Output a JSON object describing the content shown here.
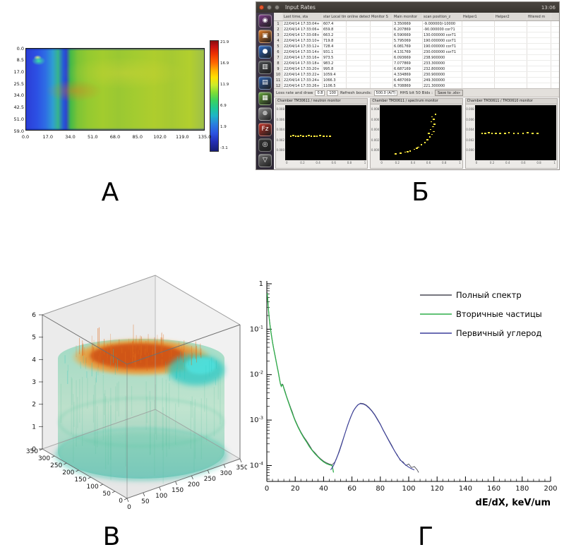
{
  "labels": {
    "panel_a": "А",
    "panel_b": "Б",
    "panel_v": "В",
    "panel_g": "Г"
  },
  "panel_b": {
    "window_title": "Input Rates",
    "clock": "13:06",
    "launcher": [
      {
        "name": "dash-home",
        "bg": "#7b3b86",
        "glyph": "◉"
      },
      {
        "name": "files",
        "bg": "#e07b26",
        "glyph": "▣"
      },
      {
        "name": "firefox",
        "bg": "#2e6bc4",
        "glyph": "●"
      },
      {
        "name": "system-monitor",
        "bg": "#4a4d50",
        "glyph": "▥"
      },
      {
        "name": "libreoffice-writer",
        "bg": "#2d5fa9",
        "glyph": "▤"
      },
      {
        "name": "libreoffice-calc",
        "bg": "#68a63e",
        "glyph": "▦"
      },
      {
        "name": "settings",
        "bg": "#8d8d8d",
        "glyph": "⊕"
      },
      {
        "name": "fz-analyzer",
        "bg": "#c23227",
        "glyph": "Fz"
      },
      {
        "name": "screenshot-tool",
        "bg": "#343434",
        "glyph": "◎"
      },
      {
        "name": "trash",
        "bg": "#6f6f6f",
        "glyph": "▽"
      }
    ],
    "table": {
      "columns": [
        "",
        "Last time, sta",
        "star Local time, ms",
        "online detector da",
        "Monitor S",
        "Main monitor",
        "scan position_z",
        "Helper1",
        "Helper2",
        "filtered m"
      ],
      "rows": [
        [
          "1",
          "22/04/14 17:33:04+",
          "607.4",
          "",
          "",
          "3.350669",
          "-9.000000/-10000",
          "",
          "",
          ""
        ],
        [
          "2",
          "22/04/14 17:33:06+",
          "659.8",
          "",
          "",
          "6.207869",
          "-90.000000 cor71",
          "",
          "",
          ""
        ],
        [
          "3",
          "22/04/14 17:33:08+",
          "663.2",
          "",
          "",
          "6.590669",
          "130.000000 cor71",
          "",
          "",
          ""
        ],
        [
          "4",
          "22/04/14 17:33:10+",
          "719.8",
          "",
          "",
          "5.795069",
          "190.000000 cor71",
          "",
          "",
          ""
        ],
        [
          "5",
          "22/04/14 17:33:12+",
          "728.4",
          "",
          "",
          "6.081769",
          "190.000000 cor71",
          "",
          "",
          ""
        ],
        [
          "6",
          "22/04/14 17:33:14+",
          "931.1",
          "",
          "",
          "4.131769",
          "230.000000 cor71",
          "",
          "",
          ""
        ],
        [
          "7",
          "22/04/14 17:33:16+",
          "973.5",
          "",
          "",
          "6.093669",
          "238.900000",
          "",
          "",
          ""
        ],
        [
          "8",
          "22/04/14 17:33:18+",
          "983.2",
          "",
          "",
          "7.077869",
          "233.300000",
          "",
          "",
          ""
        ],
        [
          "9",
          "22/04/14 17:33:20+",
          "995.8",
          "",
          "",
          "6.687169",
          "232.800000",
          "",
          "",
          ""
        ],
        [
          "10",
          "22/04/14 17:33:22+",
          "1059.4",
          "",
          "",
          "4.334869",
          "230.900000",
          "",
          "",
          ""
        ],
        [
          "11",
          "22/04/14 17:33:24+",
          "1066.3",
          "",
          "",
          "6.487069",
          "249.300000",
          "",
          "",
          ""
        ],
        [
          "12",
          "22/04/14 17:33:26+",
          "1106.5",
          "",
          "",
          "6.708869",
          "221.300000",
          "",
          "",
          ""
        ]
      ]
    },
    "controls": {
      "label1": "Loss rate and draw",
      "field1": "0.8",
      "field2": "100",
      "label2": "Refresh bounds:",
      "field3": "500.0 (A/T)",
      "label3": "HHS bit 50 Bids :",
      "button": "Save to .xls»"
    },
    "monitors": [
      {
        "title": "Chamber TM30611 / neutron monitor",
        "y_ticks": [
          "0.008",
          "0.006",
          "0.004",
          "0.002",
          "0.000"
        ],
        "x_ticks": [
          "0",
          "0.2",
          "0.4",
          "0.6",
          "0.8",
          "1"
        ],
        "dots": [
          [
            6,
            55
          ],
          [
            9,
            54
          ],
          [
            12,
            55
          ],
          [
            15,
            55
          ],
          [
            18,
            54
          ],
          [
            21,
            55
          ],
          [
            25,
            55
          ],
          [
            28,
            54
          ],
          [
            31,
            55
          ],
          [
            35,
            55
          ],
          [
            38,
            55
          ],
          [
            42,
            54
          ],
          [
            46,
            55
          ],
          [
            50,
            55
          ],
          [
            54,
            55
          ]
        ]
      },
      {
        "title": "Chamber TM30611 / spectrum monitor",
        "y_ticks": [
          "0.008",
          "0.006",
          "0.004",
          "0.002",
          "0.000"
        ],
        "x_ticks": [
          "0",
          "0.2",
          "0.4",
          "0.6",
          "0.8",
          "1"
        ],
        "dots": [
          [
            67,
            16
          ],
          [
            63,
            20
          ],
          [
            65,
            24
          ],
          [
            62,
            29
          ],
          [
            66,
            33
          ],
          [
            64,
            38
          ],
          [
            61,
            43
          ],
          [
            65,
            47
          ],
          [
            63,
            52
          ],
          [
            59,
            50
          ],
          [
            60,
            57
          ],
          [
            57,
            62
          ],
          [
            54,
            67
          ],
          [
            50,
            71
          ],
          [
            46,
            75
          ],
          [
            44,
            77
          ],
          [
            41,
            79
          ],
          [
            36,
            82
          ],
          [
            33,
            83
          ],
          [
            30,
            84
          ],
          [
            24,
            86
          ],
          [
            18,
            87
          ]
        ]
      },
      {
        "title": "Chamber TM30611 / TM30610 monitor",
        "y_ticks": [
          "0.008",
          "0.006",
          "0.004",
          "0.002",
          "0.000"
        ],
        "x_ticks": [
          "0",
          "0.2",
          "0.4",
          "0.6",
          "0.8",
          "1"
        ],
        "dots": [
          [
            8,
            50
          ],
          [
            12,
            50
          ],
          [
            16,
            49
          ],
          [
            20,
            50
          ],
          [
            25,
            50
          ],
          [
            30,
            50
          ],
          [
            36,
            50
          ],
          [
            41,
            49
          ],
          [
            47,
            50
          ],
          [
            52,
            50
          ],
          [
            58,
            50
          ],
          [
            64,
            49
          ],
          [
            70,
            50
          ],
          [
            76,
            50
          ]
        ]
      }
    ]
  },
  "panel_v": {
    "z_ticks": [
      "0",
      "1",
      "2",
      "3",
      "4",
      "5",
      "6"
    ],
    "depth_ticks": [
      "350",
      "300",
      "250",
      "200",
      "150",
      "100",
      "50",
      "0"
    ],
    "x_ticks": [
      "0",
      "50",
      "100",
      "150",
      "200",
      "250",
      "300",
      "350"
    ]
  },
  "chart_data": [
    {
      "id": "panel-a-beam-profile",
      "type": "heatmap",
      "title": "",
      "x_ticks": [
        "0.0",
        "17.0",
        "34.0",
        "51.0",
        "68.0",
        "85.0",
        "102.0",
        "119.0",
        "135.0"
      ],
      "y_ticks": [
        "0.0",
        "8.5",
        "17.0",
        "25.5",
        "34.0",
        "42.5",
        "51.0",
        "59.0"
      ],
      "colorbar_ticks": [
        "21.9",
        "16.9",
        "11.9",
        "6.9",
        "1.9",
        "-3.1"
      ],
      "xlim": [
        0,
        135
      ],
      "ylim": [
        0,
        59
      ]
    },
    {
      "id": "panel-g-let-spectrum",
      "type": "line",
      "title": "",
      "xlabel": "dE/dX, keV/um",
      "ylabel": "",
      "xlim": [
        0,
        200
      ],
      "ylog": true,
      "ylim": [
        4.5e-05,
        1
      ],
      "x_ticks": [
        0,
        20,
        40,
        60,
        80,
        100,
        120,
        140,
        160,
        180,
        200
      ],
      "y_tick_decades": [
        0,
        -1,
        -2,
        -3,
        -4
      ],
      "legend_position": "top-right",
      "legend": [
        {
          "label": "Полный спектр",
          "color": "#4a4a55"
        },
        {
          "label": "Вторичные частицы",
          "color": "#2fae4a"
        },
        {
          "label": "Первичный углерод",
          "color": "#3b3f9c"
        }
      ],
      "series": [
        {
          "name": "Полный спектр",
          "color": "#4a4a55",
          "width": 0.9,
          "points": [
            [
              0.3,
              0.65
            ],
            [
              0.8,
              0.4
            ],
            [
              1.2,
              0.27
            ],
            [
              1.8,
              0.17
            ],
            [
              2.5,
              0.11
            ],
            [
              3.2,
              0.078
            ],
            [
              4,
              0.054
            ],
            [
              5,
              0.036
            ],
            [
              6,
              0.025
            ],
            [
              7,
              0.017
            ],
            [
              8,
              0.012
            ],
            [
              9,
              0.008
            ],
            [
              9.6,
              0.0064
            ],
            [
              10.2,
              0.0057
            ],
            [
              10.8,
              0.0062
            ],
            [
              11.4,
              0.006
            ],
            [
              12,
              0.0052
            ],
            [
              13,
              0.0042
            ],
            [
              14,
              0.0033
            ],
            [
              15,
              0.0027
            ],
            [
              16,
              0.0022
            ],
            [
              17,
              0.0018
            ],
            [
              18,
              0.0015
            ],
            [
              19,
              0.0012
            ],
            [
              20,
              0.001
            ],
            [
              22,
              0.00073
            ],
            [
              24,
              0.00055
            ],
            [
              26,
              0.00043
            ],
            [
              28,
              0.00035
            ],
            [
              30,
              0.00028
            ],
            [
              32,
              0.00022
            ],
            [
              34,
              0.00019
            ],
            [
              36,
              0.00016
            ],
            [
              38,
              0.00014
            ],
            [
              40,
              0.000125
            ],
            [
              42,
              0.000115
            ],
            [
              44,
              0.000108
            ],
            [
              46,
              0.000104
            ],
            [
              48,
              0.00012
            ],
            [
              50,
              0.00017
            ],
            [
              52,
              0.00026
            ],
            [
              54,
              0.0004
            ],
            [
              56,
              0.00062
            ],
            [
              58,
              0.00094
            ],
            [
              60,
              0.00135
            ],
            [
              62,
              0.0018
            ],
            [
              64,
              0.00215
            ],
            [
              66,
              0.00235
            ],
            [
              68,
              0.0023
            ],
            [
              70,
              0.00215
            ],
            [
              72,
              0.0019
            ],
            [
              74,
              0.00162
            ],
            [
              76,
              0.00133
            ],
            [
              78,
              0.00105
            ],
            [
              80,
              0.00082
            ],
            [
              82,
              0.00061
            ],
            [
              84,
              0.00047
            ],
            [
              86,
              0.00036
            ],
            [
              88,
              0.00028
            ],
            [
              90,
              0.00021
            ],
            [
              92,
              0.00017
            ],
            [
              94,
              0.00013
            ],
            [
              96,
              0.00012
            ],
            [
              98,
              0.0001
            ],
            [
              100,
              0.000108
            ],
            [
              102,
              9e-05
            ],
            [
              104,
              9.5e-05
            ],
            [
              106,
              8e-05
            ],
            [
              107,
              7e-05
            ]
          ]
        },
        {
          "name": "Вторичные частицы",
          "color": "#2fae4a",
          "width": 1.3,
          "points": [
            [
              0.3,
              0.62
            ],
            [
              0.8,
              0.38
            ],
            [
              1.2,
              0.26
            ],
            [
              1.8,
              0.16
            ],
            [
              2.5,
              0.105
            ],
            [
              3.2,
              0.075
            ],
            [
              4,
              0.052
            ],
            [
              5,
              0.035
            ],
            [
              6,
              0.024
            ],
            [
              7,
              0.0165
            ],
            [
              8,
              0.0115
            ],
            [
              9,
              0.0078
            ],
            [
              9.6,
              0.0062
            ],
            [
              10.2,
              0.0055
            ],
            [
              10.8,
              0.006
            ],
            [
              11.4,
              0.0058
            ],
            [
              12,
              0.005
            ],
            [
              13,
              0.004
            ],
            [
              14,
              0.0032
            ],
            [
              15,
              0.0026
            ],
            [
              16,
              0.0021
            ],
            [
              17,
              0.0017
            ],
            [
              18,
              0.0014
            ],
            [
              19,
              0.00115
            ],
            [
              20,
              0.00096
            ],
            [
              22,
              0.0007
            ],
            [
              24,
              0.00053
            ],
            [
              26,
              0.00041
            ],
            [
              28,
              0.00033
            ],
            [
              30,
              0.00026
            ],
            [
              32,
              0.000215
            ],
            [
              34,
              0.00018
            ],
            [
              36,
              0.000155
            ],
            [
              38,
              0.000135
            ],
            [
              40,
              0.00012
            ],
            [
              42,
              0.00011
            ],
            [
              44,
              0.000104
            ],
            [
              46,
              0.0001
            ],
            [
              47,
              7e-05
            ]
          ]
        },
        {
          "name": "Первичный углерод",
          "color": "#3b3f9c",
          "width": 1.1,
          "points": [
            [
              45,
              8e-05
            ],
            [
              47,
              0.0001
            ],
            [
              49,
              0.00014
            ],
            [
              51,
              0.0002
            ],
            [
              53,
              0.00031
            ],
            [
              55,
              0.0005
            ],
            [
              57,
              0.00078
            ],
            [
              59,
              0.00115
            ],
            [
              61,
              0.0016
            ],
            [
              63,
              0.00195
            ],
            [
              64.5,
              0.0022
            ],
            [
              66,
              0.0023
            ],
            [
              68,
              0.00225
            ],
            [
              70,
              0.0021
            ],
            [
              72,
              0.00185
            ],
            [
              74,
              0.00158
            ],
            [
              76,
              0.0013
            ],
            [
              78,
              0.00102
            ],
            [
              80,
              0.0008
            ],
            [
              82,
              0.0006
            ],
            [
              84,
              0.00046
            ],
            [
              86,
              0.00035
            ],
            [
              88,
              0.00027
            ],
            [
              90,
              0.00021
            ],
            [
              92,
              0.000165
            ],
            [
              94,
              0.000135
            ],
            [
              96,
              0.000115
            ],
            [
              98,
              0.000102
            ],
            [
              100,
              9.2e-05
            ],
            [
              102,
              8.5e-05
            ],
            [
              104,
              8e-05
            ]
          ]
        }
      ]
    }
  ]
}
